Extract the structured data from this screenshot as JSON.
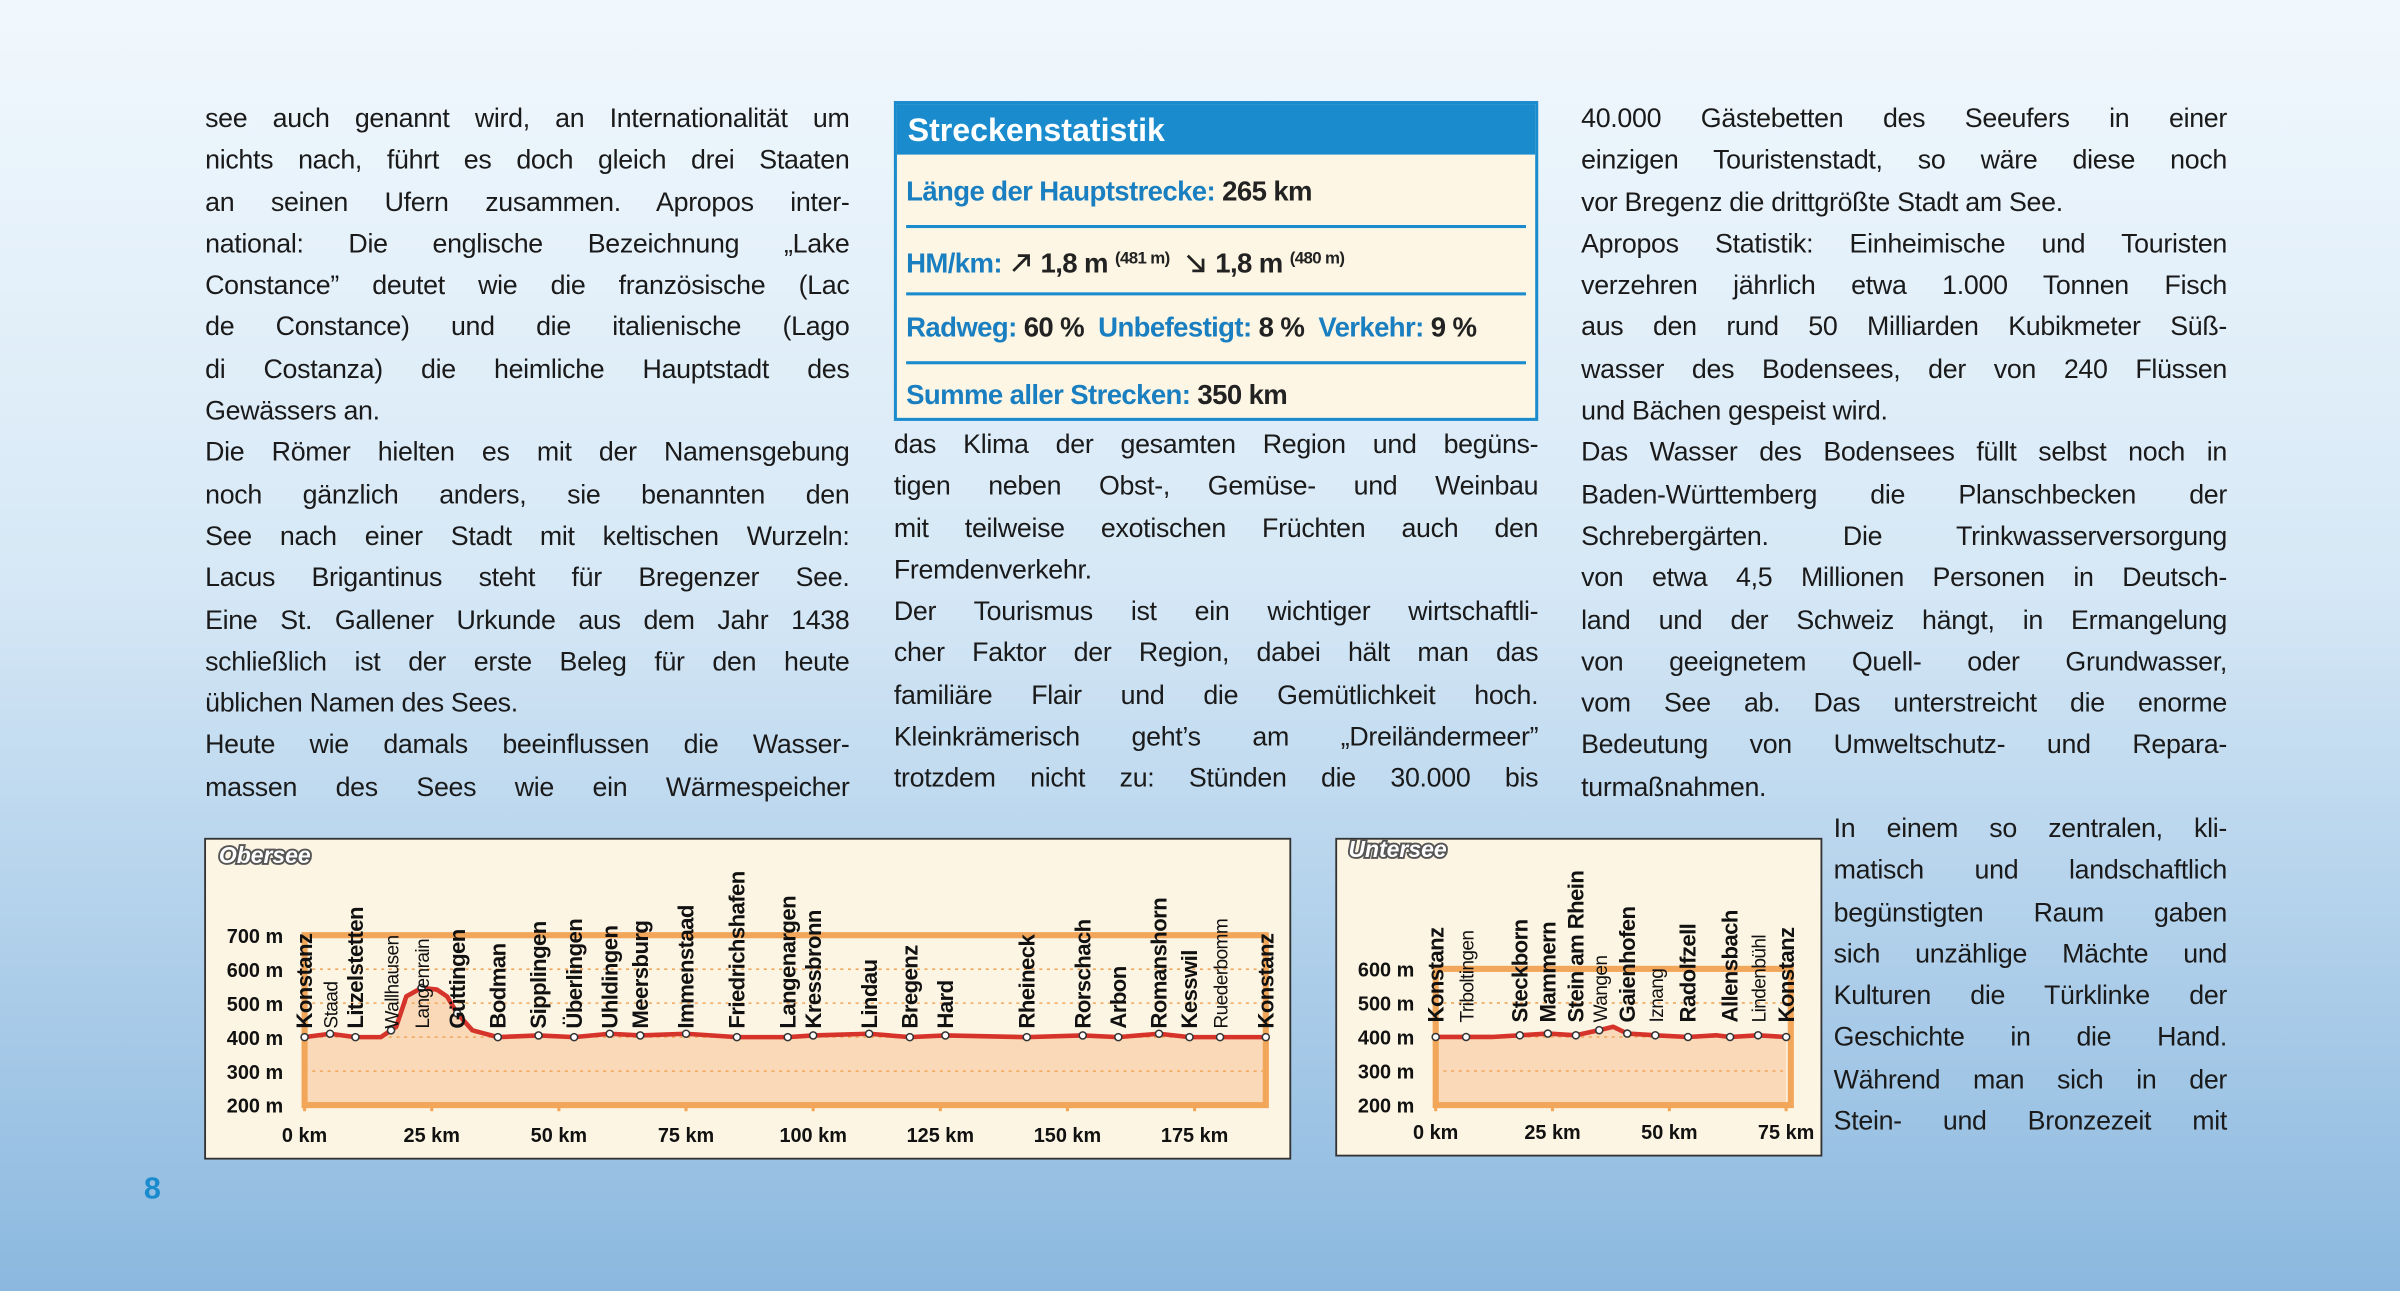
{
  "document": {
    "columns": [
      {
        "paragraphs": [
          [
            "see auch genannt wird, an Internationalität um",
            "nichts nach, führt es doch gleich drei Staaten",
            "an seinen Ufern zusammen. Apropos inter-",
            "national: Die englische Bezeichnung „Lake",
            "Constance” deutet wie die französische (Lac",
            "de Constance) und die italienische (Lago",
            "di Costanza) die heimliche Hauptstadt des",
            "Gewässers an."
          ],
          [
            "Die Römer hielten es mit der Namensgebung",
            "noch gänzlich anders, sie benannten den",
            "See nach einer Stadt mit keltischen Wurzeln:",
            "Lacus Brigantinus steht für Bregenzer See.",
            "Eine St. Gallener Urkunde aus dem Jahr 1438",
            "schließlich ist der erste Beleg für den heute",
            "üblichen Namen des Sees."
          ],
          [
            "Heute wie damals beeinflussen die Wasser-",
            "massen des Sees wie ein Wärmespeicher"
          ]
        ]
      },
      {
        "paragraphs": [
          [
            "das Klima der gesamten Region und begüns-",
            "tigen neben Obst-, Gemüse- und Weinbau",
            "mit teilweise exotischen Früchten auch den",
            "Fremdenverkehr."
          ],
          [
            "Der Tourismus ist ein wichtiger wirtschaftli-",
            "cher Faktor der Region, dabei hält man das",
            "familiäre Flair und die Gemütlichkeit hoch.",
            "Kleinkrämerisch geht’s am „Dreiländermeer”",
            "trotzdem nicht zu: Stünden die 30.000 bis"
          ]
        ]
      },
      {
        "paragraphs": [
          [
            "40.000 Gästebetten des Seeufers in einer",
            "einzigen Touristenstadt, so wäre diese noch",
            "vor Bregenz die drittgrößte Stadt am See."
          ],
          [
            "Apropos Statistik: Einheimische und Touristen",
            "verzehren jährlich etwa 1.000 Tonnen Fisch",
            "aus den rund 50 Milliarden Kubikmeter Süß-",
            "wasser des Bodensees, der von 240 Flüssen",
            "und Bächen gespeist wird."
          ],
          [
            "Das Wasser des Bodensees füllt selbst noch in",
            "Baden-Württemberg die Planschbecken der",
            "Schrebergärten. Die Trinkwasserversorgung",
            "von etwa 4,5 Millionen Personen in Deutsch-",
            "land und der Schweiz hängt, in Ermangelung",
            "von geeignetem Quell- oder Grundwasser,",
            "vom See ab. Das unterstreicht die enorme",
            "Bedeutung von Umweltschutz- und Repara-",
            "turmaßnahmen."
          ]
        ]
      },
      {
        "paragraphs": [
          [
            "In einem so zentralen, kli-",
            "matisch und landschaftlich",
            "begünstigten Raum gaben",
            "sich unzählige Mächte und",
            "Kulturen die Türklinke der",
            "Geschichte in die Hand.",
            "Während man sich in der",
            "Stein- und Bronzezeit mit"
          ]
        ]
      }
    ],
    "stats": {
      "title": "Streckenstatistik",
      "length": {
        "label": "Länge der Hauptstrecke:",
        "value": "265 km"
      },
      "elevation": {
        "label": "HM/km:",
        "ascent": "1,8 m",
        "ascent_total": "(481 m)",
        "descent": "1,8 m",
        "descent_total": "(480 m)"
      },
      "surface": [
        {
          "label": "Radweg:",
          "value": "60 %"
        },
        {
          "label": "Unbefestigt:",
          "value": "8 %"
        },
        {
          "label": "Verkehr:",
          "value": "9 %"
        }
      ],
      "total": {
        "label": "Summe aller Strecken:",
        "value": "350 km"
      }
    },
    "page_number": "8"
  },
  "chart_data": [
    {
      "type": "area",
      "title": "Obersee",
      "xlim": [
        0,
        189
      ],
      "ylim": [
        200,
        700
      ],
      "xticks": [
        {
          "value": 0,
          "label": "0 km"
        },
        {
          "value": 25,
          "label": "25 km"
        },
        {
          "value": 50,
          "label": "50 km"
        },
        {
          "value": 75,
          "label": "75 km"
        },
        {
          "value": 100,
          "label": "100 km"
        },
        {
          "value": 125,
          "label": "125 km"
        },
        {
          "value": 150,
          "label": "150 km"
        },
        {
          "value": 175,
          "label": "175 km"
        }
      ],
      "yticks": [
        {
          "value": 200,
          "label": "200 m"
        },
        {
          "value": 300,
          "label": "300 m"
        },
        {
          "value": 400,
          "label": "400 m"
        },
        {
          "value": 500,
          "label": "500 m"
        },
        {
          "value": 600,
          "label": "600 m"
        },
        {
          "value": 700,
          "label": "700 m"
        }
      ],
      "grid": true,
      "fill_color": "#f9d9b8",
      "frame_color": "#f2a65a",
      "series": [
        {
          "color": "#d6332a",
          "x": [
            0,
            5,
            10,
            15,
            18,
            20,
            23,
            26,
            28,
            30,
            33,
            38,
            46,
            53,
            60,
            66,
            75,
            85,
            95,
            100,
            111,
            119,
            126,
            142,
            153,
            160,
            168,
            174,
            180,
            189
          ],
          "values": [
            400,
            410,
            400,
            400,
            430,
            520,
            545,
            540,
            520,
            470,
            420,
            400,
            405,
            400,
            410,
            405,
            410,
            400,
            400,
            405,
            410,
            400,
            405,
            400,
            405,
            400,
            410,
            400,
            400,
            400
          ]
        }
      ],
      "places": [
        {
          "label": "Konstanz",
          "x": 0,
          "bold": true
        },
        {
          "label": "Staad",
          "x": 5,
          "bold": false
        },
        {
          "label": "Litzelstetten",
          "x": 10,
          "bold": true
        },
        {
          "label": "Wallhausen",
          "x": 17,
          "bold": false
        },
        {
          "label": "Langenrain",
          "x": 23,
          "bold": false
        },
        {
          "label": "Güttingen",
          "x": 30,
          "bold": true
        },
        {
          "label": "Bodman",
          "x": 38,
          "bold": true
        },
        {
          "label": "Sipplingen",
          "x": 46,
          "bold": true
        },
        {
          "label": "Überlingen",
          "x": 53,
          "bold": true
        },
        {
          "label": "Uhldingen",
          "x": 60,
          "bold": true
        },
        {
          "label": "Meersburg",
          "x": 66,
          "bold": true
        },
        {
          "label": "Immenstaad",
          "x": 75,
          "bold": true
        },
        {
          "label": "Friedrichshafen",
          "x": 85,
          "bold": true
        },
        {
          "label": "Langenargen",
          "x": 95,
          "bold": true
        },
        {
          "label": "Kressbronn",
          "x": 100,
          "bold": true
        },
        {
          "label": "Lindau",
          "x": 111,
          "bold": true
        },
        {
          "label": "Bregenz",
          "x": 119,
          "bold": true
        },
        {
          "label": "Hard",
          "x": 126,
          "bold": true
        },
        {
          "label": "Rheineck",
          "x": 142,
          "bold": true
        },
        {
          "label": "Rorschach",
          "x": 153,
          "bold": true
        },
        {
          "label": "Arbon",
          "x": 160,
          "bold": true
        },
        {
          "label": "Romanshorn",
          "x": 168,
          "bold": true
        },
        {
          "label": "Kesswil",
          "x": 174,
          "bold": true
        },
        {
          "label": "Ruederbomm",
          "x": 180,
          "bold": false
        },
        {
          "label": "Konstanz",
          "x": 189,
          "bold": true
        }
      ]
    },
    {
      "type": "area",
      "title": "Untersee",
      "xlim": [
        0,
        76
      ],
      "ylim": [
        200,
        600
      ],
      "xticks": [
        {
          "value": 0,
          "label": "0 km"
        },
        {
          "value": 25,
          "label": "25 km"
        },
        {
          "value": 50,
          "label": "50 km"
        },
        {
          "value": 75,
          "label": "75 km"
        }
      ],
      "yticks": [
        {
          "value": 200,
          "label": "200 m"
        },
        {
          "value": 300,
          "label": "300 m"
        },
        {
          "value": 400,
          "label": "400 m"
        },
        {
          "value": 500,
          "label": "500 m"
        },
        {
          "value": 600,
          "label": "600 m"
        }
      ],
      "grid": true,
      "fill_color": "#f9d9b8",
      "frame_color": "#f2a65a",
      "series": [
        {
          "color": "#d6332a",
          "x": [
            0,
            6,
            12,
            18,
            24,
            30,
            35,
            38,
            41,
            47,
            54,
            60,
            63,
            69,
            75
          ],
          "values": [
            400,
            400,
            400,
            405,
            410,
            405,
            420,
            430,
            410,
            405,
            400,
            405,
            400,
            405,
            400
          ]
        }
      ],
      "places": [
        {
          "label": "Konstanz",
          "x": 0,
          "bold": true
        },
        {
          "label": "Triboltingen",
          "x": 6.5,
          "bold": false
        },
        {
          "label": "Steckborn",
          "x": 18,
          "bold": true
        },
        {
          "label": "Mammern",
          "x": 24,
          "bold": true
        },
        {
          "label": "Stein am Rhein",
          "x": 30,
          "bold": true
        },
        {
          "label": "Wangen",
          "x": 35,
          "bold": false
        },
        {
          "label": "Gaienhofen",
          "x": 41,
          "bold": true
        },
        {
          "label": "Iznang",
          "x": 47,
          "bold": false
        },
        {
          "label": "Radolfzell",
          "x": 54,
          "bold": true
        },
        {
          "label": "Allensbach",
          "x": 63,
          "bold": true
        },
        {
          "label": "Lindenbühl",
          "x": 69,
          "bold": false
        },
        {
          "label": "Konstanz",
          "x": 75,
          "bold": true
        }
      ]
    }
  ]
}
